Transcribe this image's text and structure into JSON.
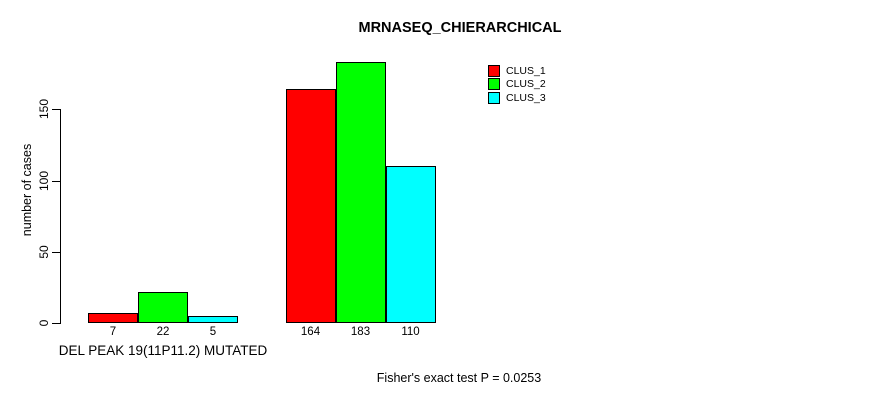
{
  "chart_data": {
    "type": "bar",
    "title": "MRNASEQ_CHIERARCHICAL",
    "ylabel": "number of cases",
    "xlabel": "",
    "categories": [
      "DEL PEAK 19(11P11.2) MUTATED",
      ""
    ],
    "series": [
      {
        "name": "CLUS_1",
        "color": "#FF0000",
        "values": [
          7,
          164
        ]
      },
      {
        "name": "CLUS_2",
        "color": "#00FF00",
        "values": [
          22,
          183
        ]
      },
      {
        "name": "CLUS_3",
        "color": "#00FFFF",
        "values": [
          5,
          110
        ]
      }
    ],
    "yticks": [
      0,
      50,
      100,
      150
    ],
    "ylim": [
      0,
      190
    ],
    "grid": false,
    "legend_position": "top-right",
    "bar_value_labels_shown": true,
    "annotation": "Fisher's exact test P = 0.0253"
  },
  "colors": {
    "axis": "#000000",
    "text": "#000000",
    "background": "#FFFFFF"
  }
}
